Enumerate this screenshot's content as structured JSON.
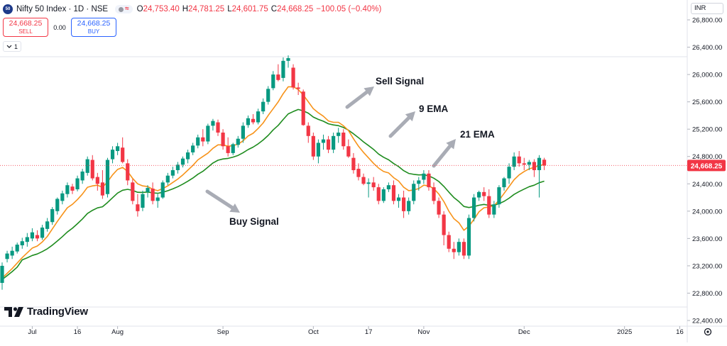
{
  "header": {
    "symbol_logo": "50",
    "title": "Nifty 50 Index · 1D · NSE",
    "status_text": "≈",
    "ohlc": [
      {
        "k": "O",
        "v": "24,753.40"
      },
      {
        "k": "H",
        "v": "24,781.25"
      },
      {
        "k": "L",
        "v": "24,601.75"
      },
      {
        "k": "C",
        "v": "24,668.25"
      }
    ],
    "change": "−100.05 (−0.40%)"
  },
  "trade": {
    "sell_price": "24,668.25",
    "sell_label": "SELL",
    "spread": "0.00",
    "buy_price": "24,668.25",
    "buy_label": "BUY"
  },
  "collapse_label": "1",
  "currency": "INR",
  "logo_text": "TradingView",
  "colors": {
    "up": "#089981",
    "down": "#f23645",
    "ema9": "#f7931a",
    "ema21": "#1e8c1e",
    "arrow": "#a9acb5",
    "price_label": "#f23645"
  },
  "chart_data": {
    "type": "candlestick",
    "y_ticks": [
      "26,800.00",
      "26,400.00",
      "26,000.00",
      "25,600.00",
      "25,200.00",
      "24,800.00",
      "24,400.00",
      "24,000.00",
      "23,600.00",
      "23,200.00",
      "22,800.00",
      "22,400.00"
    ],
    "ylim": [
      22400,
      26800
    ],
    "x_labels": [
      {
        "label": "Jul",
        "index": 6
      },
      {
        "label": "16",
        "index": 15
      },
      {
        "label": "Aug",
        "index": 23
      },
      {
        "label": "Sep",
        "index": 44
      },
      {
        "label": "Oct",
        "index": 62
      },
      {
        "label": "17",
        "index": 73
      },
      {
        "label": "Nov",
        "index": 84
      },
      {
        "label": "Dec",
        "index": 104
      },
      {
        "label": "2025",
        "index": 124
      },
      {
        "label": "16",
        "index": 135
      }
    ],
    "last_price": "24,668.25",
    "last_price_value": 24668.25,
    "annotations": [
      {
        "text": "Buy Signal",
        "at_index": 40,
        "at_value": 23850
      },
      {
        "text": "Sell Signal",
        "at_index": 68,
        "at_value": 25950
      },
      {
        "text": "9 EMA",
        "at_index": 76,
        "at_value": 25480
      },
      {
        "text": "21 EMA",
        "at_index": 84,
        "at_value": 25050
      }
    ],
    "candles": [
      [
        22950,
        23250,
        22850,
        23200
      ],
      [
        23300,
        23420,
        23250,
        23380
      ],
      [
        23350,
        23480,
        23300,
        23420
      ],
      [
        23410,
        23540,
        23380,
        23510
      ],
      [
        23500,
        23610,
        23450,
        23560
      ],
      [
        23550,
        23680,
        23480,
        23620
      ],
      [
        23600,
        23750,
        23560,
        23690
      ],
      [
        23650,
        23720,
        23560,
        23600
      ],
      [
        23610,
        23800,
        23580,
        23760
      ],
      [
        23740,
        23900,
        23700,
        23850
      ],
      [
        23840,
        24060,
        23800,
        24030
      ],
      [
        24000,
        24200,
        23950,
        24180
      ],
      [
        24150,
        24300,
        24100,
        24260
      ],
      [
        24250,
        24420,
        24200,
        24380
      ],
      [
        24360,
        24400,
        24250,
        24300
      ],
      [
        24320,
        24520,
        24290,
        24480
      ],
      [
        24450,
        24620,
        24400,
        24580
      ],
      [
        24560,
        24800,
        24520,
        24760
      ],
      [
        24750,
        24820,
        24450,
        24480
      ],
      [
        24500,
        24560,
        24300,
        24400
      ],
      [
        24420,
        24600,
        24180,
        24230
      ],
      [
        24250,
        24780,
        24200,
        24750
      ],
      [
        24760,
        24950,
        24700,
        24900
      ],
      [
        24880,
        25000,
        24820,
        24950
      ],
      [
        24930,
        25080,
        24700,
        24720
      ],
      [
        24700,
        24760,
        24380,
        24450
      ],
      [
        24420,
        24470,
        24100,
        24150
      ],
      [
        24100,
        24250,
        23920,
        24000
      ],
      [
        24050,
        24300,
        24000,
        24250
      ],
      [
        24280,
        24380,
        24200,
        24340
      ],
      [
        24330,
        24420,
        24100,
        24150
      ],
      [
        24150,
        24250,
        24050,
        24200
      ],
      [
        24200,
        24450,
        24180,
        24420
      ],
      [
        24420,
        24560,
        24380,
        24520
      ],
      [
        24520,
        24650,
        24480,
        24600
      ],
      [
        24600,
        24720,
        24550,
        24680
      ],
      [
        24680,
        24800,
        24640,
        24770
      ],
      [
        24760,
        24900,
        24700,
        24860
      ],
      [
        24860,
        25000,
        24820,
        24960
      ],
      [
        24960,
        25120,
        24920,
        25080
      ],
      [
        25080,
        25200,
        24950,
        25020
      ],
      [
        25020,
        25280,
        24980,
        25250
      ],
      [
        25250,
        25350,
        25180,
        25320
      ],
      [
        25300,
        25340,
        25100,
        25150
      ],
      [
        25150,
        25200,
        24900,
        24950
      ],
      [
        24950,
        25080,
        24800,
        24850
      ],
      [
        24850,
        25000,
        24820,
        24980
      ],
      [
        24970,
        25100,
        24930,
        25060
      ],
      [
        25060,
        25300,
        25000,
        25250
      ],
      [
        25260,
        25400,
        25220,
        25360
      ],
      [
        25350,
        25420,
        25270,
        25300
      ],
      [
        25300,
        25500,
        25270,
        25460
      ],
      [
        25460,
        25650,
        25420,
        25600
      ],
      [
        25600,
        25830,
        25560,
        25790
      ],
      [
        25800,
        26050,
        25770,
        26000
      ],
      [
        26000,
        26150,
        25900,
        25920
      ],
      [
        25950,
        26250,
        25900,
        26200
      ],
      [
        26200,
        26280,
        26100,
        26240
      ],
      [
        26100,
        26150,
        25780,
        25810
      ],
      [
        25810,
        25880,
        25700,
        25790
      ],
      [
        25750,
        25780,
        25250,
        25260
      ],
      [
        25250,
        25300,
        25000,
        25100
      ],
      [
        25100,
        25150,
        24750,
        24800
      ],
      [
        24800,
        25050,
        24700,
        25000
      ],
      [
        25000,
        25120,
        24900,
        25050
      ],
      [
        25050,
        25100,
        24850,
        24900
      ],
      [
        24900,
        25150,
        24850,
        25100
      ],
      [
        25100,
        25220,
        25000,
        25150
      ],
      [
        25150,
        25200,
        24900,
        24950
      ],
      [
        24950,
        25050,
        24780,
        24800
      ],
      [
        24780,
        24850,
        24550,
        24600
      ],
      [
        24620,
        24700,
        24450,
        24500
      ],
      [
        24500,
        24550,
        24380,
        24400
      ],
      [
        24400,
        24480,
        24200,
        24420
      ],
      [
        24420,
        24500,
        24300,
        24350
      ],
      [
        24350,
        24400,
        24100,
        24150
      ],
      [
        24150,
        24350,
        24120,
        24320
      ],
      [
        24320,
        24420,
        24280,
        24380
      ],
      [
        24380,
        24450,
        24100,
        24150
      ],
      [
        24150,
        24250,
        24050,
        24200
      ],
      [
        24200,
        24300,
        23900,
        24000
      ],
      [
        24000,
        24200,
        23950,
        24150
      ],
      [
        24150,
        24450,
        24100,
        24400
      ],
      [
        24400,
        24500,
        24300,
        24450
      ],
      [
        24460,
        24600,
        24400,
        24550
      ],
      [
        24550,
        24600,
        24300,
        24350
      ],
      [
        24350,
        24420,
        24100,
        24150
      ],
      [
        24150,
        24200,
        23900,
        23950
      ],
      [
        23950,
        24000,
        23500,
        23650
      ],
      [
        23650,
        23700,
        23400,
        23450
      ],
      [
        23450,
        23550,
        23300,
        23400
      ],
      [
        23400,
        23600,
        23350,
        23550
      ],
      [
        23550,
        23600,
        23300,
        23350
      ],
      [
        23350,
        23950,
        23300,
        23900
      ],
      [
        23900,
        24250,
        23850,
        24200
      ],
      [
        24200,
        24300,
        24150,
        24280
      ],
      [
        24280,
        24350,
        24150,
        24220
      ],
      [
        24220,
        24320,
        23900,
        23950
      ],
      [
        23950,
        24150,
        23900,
        24100
      ],
      [
        24100,
        24380,
        24050,
        24350
      ],
      [
        24350,
        24500,
        24300,
        24480
      ],
      [
        24480,
        24700,
        24400,
        24650
      ],
      [
        24650,
        24860,
        24600,
        24800
      ],
      [
        24800,
        24880,
        24650,
        24700
      ],
      [
        24700,
        24780,
        24600,
        24680
      ],
      [
        24680,
        24750,
        24600,
        24720
      ],
      [
        24720,
        24760,
        24500,
        24600
      ],
      [
        24600,
        24820,
        24200,
        24780
      ],
      [
        24753,
        24781,
        24601,
        24668
      ]
    ],
    "ema9": [
      23020,
      23090,
      23160,
      23240,
      23320,
      23390,
      23460,
      23490,
      23550,
      23630,
      23740,
      23850,
      23950,
      24050,
      24100,
      24170,
      24250,
      24350,
      24370,
      24380,
      24350,
      24430,
      24530,
      24610,
      24640,
      24580,
      24480,
      24400,
      24370,
      24360,
      24320,
      24300,
      24330,
      24370,
      24420,
      24470,
      24530,
      24600,
      24670,
      24750,
      24800,
      24850,
      24920,
      24970,
      24970,
      24950,
      24960,
      24980,
      25030,
      25100,
      25140,
      25210,
      25290,
      25400,
      25500,
      25600,
      25720,
      25820,
      25820,
      25780,
      25700,
      25600,
      25500,
      25440,
      25390,
      25320,
      25300,
      25300,
      25250,
      25180,
      25060,
      24950,
      24860,
      24780,
      24700,
      24630,
      24580,
      24560,
      24490,
      24440,
      24350,
      24300,
      24310,
      24330,
      24380,
      24370,
      24330,
      24250,
      24140,
      24000,
      23890,
      23830,
      23720,
      23780,
      23880,
      23990,
      24050,
      24060,
      24080,
      24160,
      24260,
      24360,
      24460,
      24530,
      24580,
      24620,
      24640,
      24670,
      24680
    ]
  }
}
